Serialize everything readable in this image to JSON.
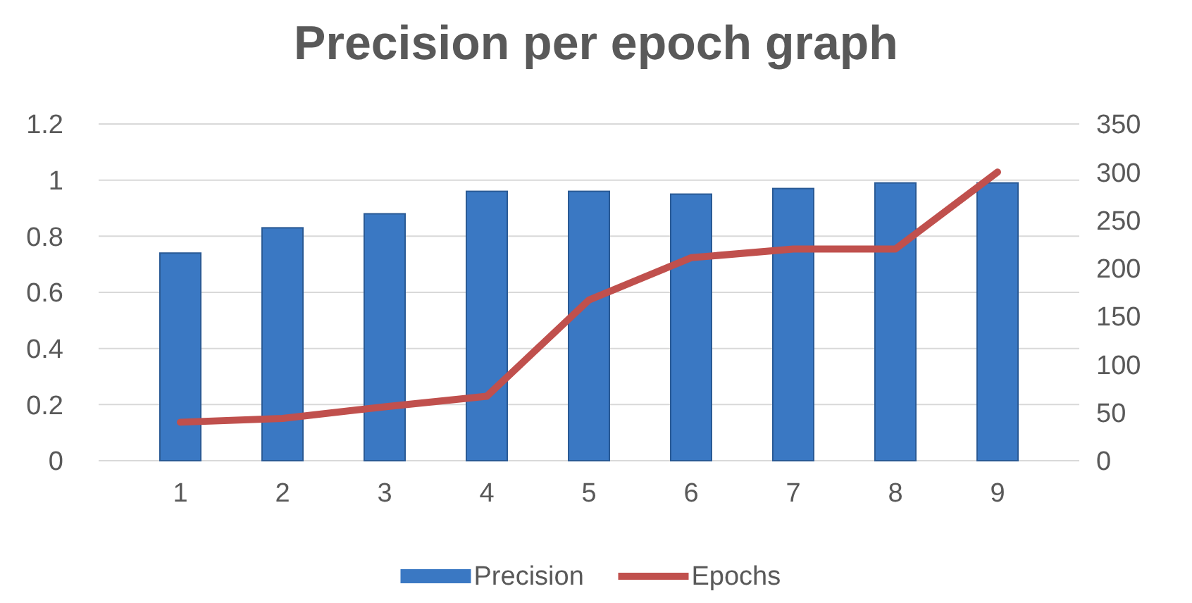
{
  "chart_data": {
    "type": "bar",
    "title": "Precision per epoch graph",
    "categories": [
      "1",
      "2",
      "3",
      "4",
      "5",
      "6",
      "7",
      "8",
      "9"
    ],
    "series": [
      {
        "name": "Precision",
        "color": "#3a78c3",
        "values": [
          0.74,
          0.83,
          0.88,
          0.96,
          0.96,
          0.95,
          0.97,
          0.99,
          0.99
        ]
      },
      {
        "name": "Epochs",
        "type": "line",
        "axis": "y2",
        "color": "#c0504d",
        "values": [
          40,
          44,
          56,
          67,
          167,
          211,
          220,
          220,
          300
        ]
      }
    ],
    "ylim": [
      0,
      1.2
    ],
    "yticks": [
      0,
      0.2,
      0.4,
      0.6,
      0.8,
      {
        "value": 1,
        "label": "1"
      },
      1.2
    ],
    "y2lim": [
      0,
      350
    ],
    "y2ticks": [
      0,
      50,
      100,
      150,
      200,
      250,
      300,
      350
    ],
    "grid": "y",
    "legend": "bottom"
  }
}
